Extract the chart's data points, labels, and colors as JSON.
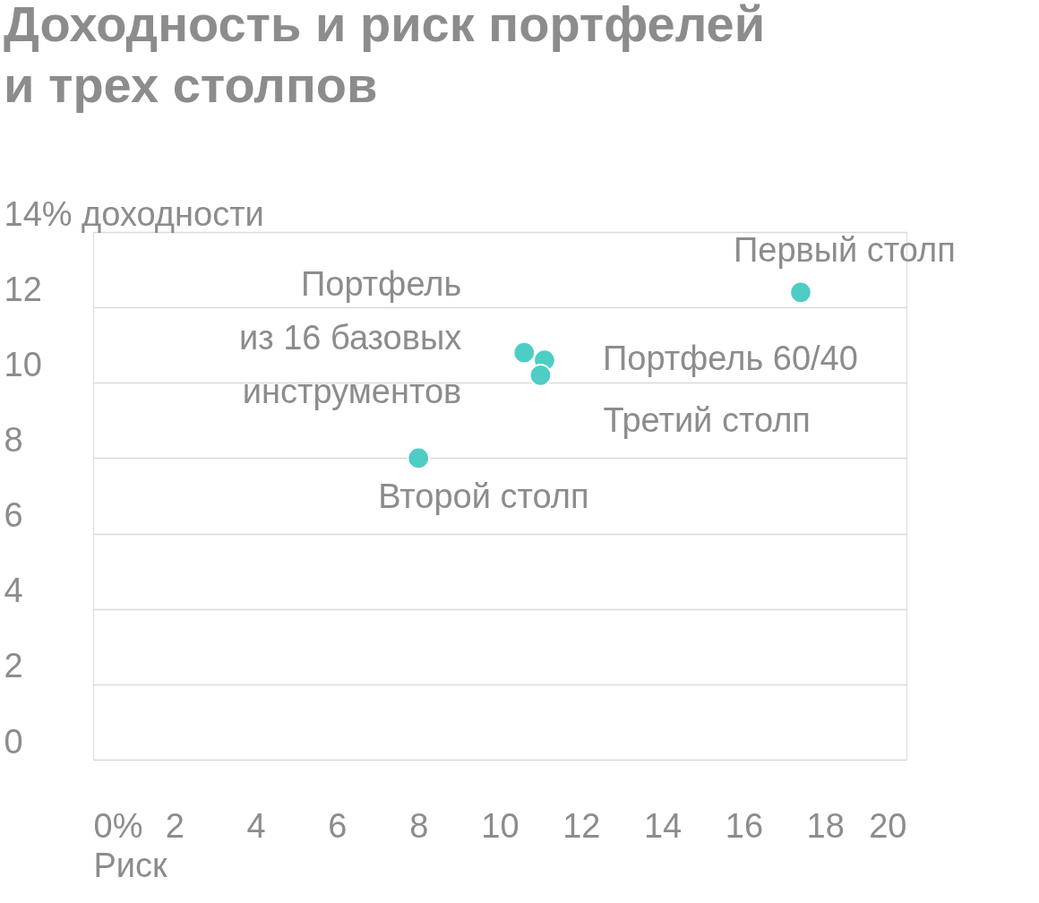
{
  "chart_data": {
    "type": "scatter",
    "title": [
      "Доходность и риск портфелей",
      "и трех столпов"
    ],
    "xlabel": "Риск",
    "series": [
      {
        "color": "#4ecdc4",
        "x": [
          17.4,
          10.6,
          11.1,
          11.0,
          8.0
        ],
        "values": [
          12.4,
          10.8,
          10.6,
          10.2,
          8.0
        ]
      }
    ],
    "annotations": [
      {
        "text": "Первый столп",
        "x": 17.4,
        "y": 12.4
      },
      {
        "text": "Портфель из 16 базовых инструментов",
        "x": 10.6,
        "y": 10.8
      },
      {
        "text": "Портфель 60/40",
        "x": 11.1,
        "y": 10.6
      },
      {
        "text": "Третий столп",
        "x": 11.0,
        "y": 10.2
      },
      {
        "text": "Второй столп",
        "x": 8.0,
        "y": 8.0
      }
    ],
    "xlim": [
      0,
      20
    ],
    "xticks": [
      {
        "value": 0,
        "label": "0%"
      },
      2,
      4,
      6,
      8,
      10,
      12,
      14,
      16,
      18,
      20
    ],
    "ylim": [
      0,
      14
    ],
    "yticks": [
      0,
      2,
      4,
      6,
      8,
      10,
      12,
      {
        "value": 14,
        "label": "14% доходности"
      }
    ],
    "grid": "y",
    "marker": "circle"
  }
}
